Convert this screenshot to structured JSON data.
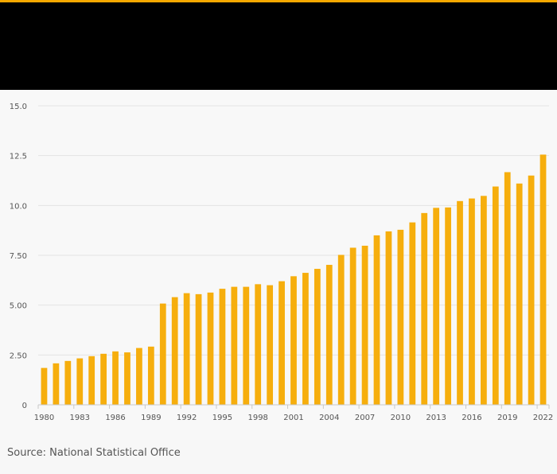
{
  "colors": {
    "accent": "#f5a800",
    "bar": "#f6ae0d",
    "header": "#000000"
  },
  "source_text": "Source: National Statistical Office",
  "chart_data": {
    "type": "bar",
    "title": "",
    "xlabel": "",
    "ylabel": "",
    "ylim": [
      0,
      15
    ],
    "grid": true,
    "y_ticks": [
      {
        "value": 0,
        "label": "0"
      },
      {
        "value": 2.5,
        "label": "2.50"
      },
      {
        "value": 5,
        "label": "5.00"
      },
      {
        "value": 7.5,
        "label": "7.50"
      },
      {
        "value": 10,
        "label": "10.0"
      },
      {
        "value": 12.5,
        "label": "12.5"
      },
      {
        "value": 15,
        "label": "15.0"
      }
    ],
    "categories": [
      "1980",
      "1981",
      "1982",
      "1983",
      "1984",
      "1985",
      "1986",
      "1987",
      "1988",
      "1989",
      "1990",
      "1991",
      "1992",
      "1993",
      "1994",
      "1995",
      "1996",
      "1997",
      "1998",
      "1999",
      "2000",
      "2001",
      "2002",
      "2003",
      "2004",
      "2005",
      "2006",
      "2007",
      "2008",
      "2009",
      "2010",
      "2011",
      "2012",
      "2013",
      "2014",
      "2015",
      "2016",
      "2017",
      "2018",
      "2019",
      "2020",
      "2021",
      "2022"
    ],
    "x_tick_labels": [
      "1980",
      "1983",
      "1986",
      "1989",
      "1992",
      "1995",
      "1998",
      "2001",
      "2004",
      "2007",
      "2010",
      "2013",
      "2016",
      "2019",
      "2022"
    ],
    "values": [
      1.85,
      2.08,
      2.2,
      2.33,
      2.44,
      2.56,
      2.68,
      2.63,
      2.85,
      2.92,
      5.08,
      5.4,
      5.6,
      5.55,
      5.63,
      5.82,
      5.92,
      5.92,
      6.05,
      6.0,
      6.2,
      6.45,
      6.62,
      6.82,
      7.02,
      7.52,
      7.88,
      7.98,
      8.5,
      8.7,
      8.78,
      9.15,
      9.62,
      9.88,
      9.9,
      10.22,
      10.35,
      10.48,
      10.95,
      11.67,
      11.1,
      11.5,
      12.55
    ]
  }
}
